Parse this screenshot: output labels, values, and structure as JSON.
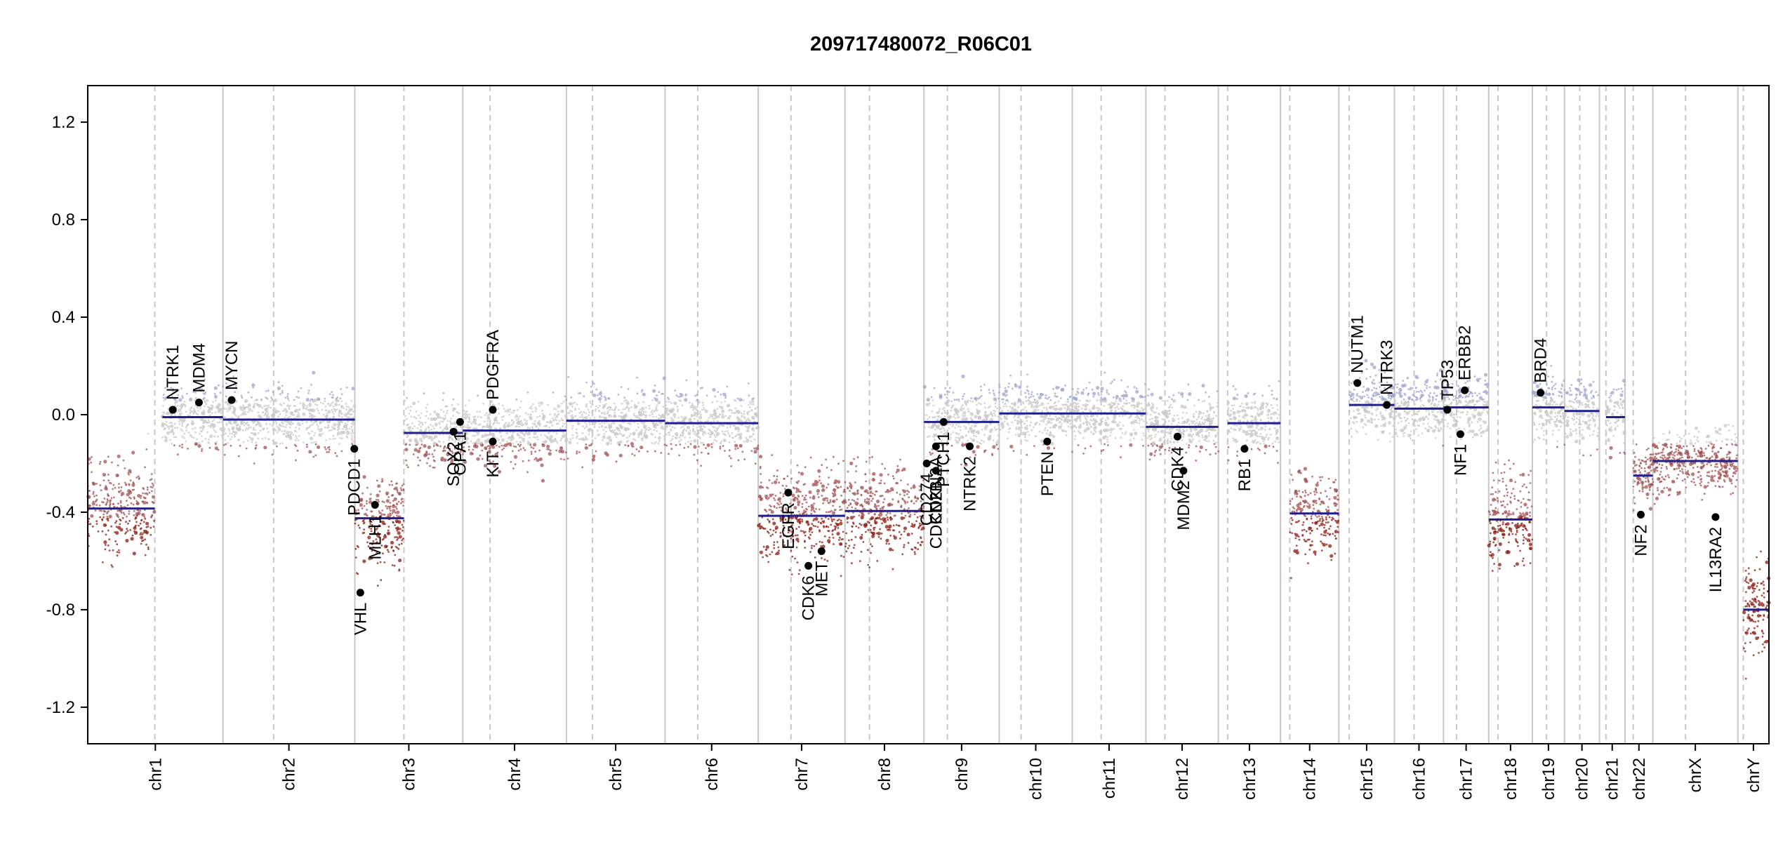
{
  "colors": {
    "segment": "#1f1f8f",
    "gene_point": "#000000",
    "gain": "#9ea3cf",
    "neutral": "#c8c8c8",
    "loss": "#a35050",
    "deep_loss": "#8b1a0f",
    "chrom_boundary": "#c8c8c8",
    "centromere": "#c8c8c8",
    "axis": "#000000"
  },
  "chart_data": {
    "type": "scatter",
    "title": "209717480072_R06C01",
    "xlabel": "",
    "ylabel": "",
    "ylim": [
      -1.35,
      1.35
    ],
    "yticks": [
      -1.2,
      -0.8,
      -0.4,
      0.0,
      0.4,
      0.8,
      1.2
    ],
    "ytick_labels": [
      "-1.2",
      "-0.8",
      "-0.4",
      "0.0",
      "0.4",
      "0.8",
      "1.2"
    ],
    "x_units": "Mb (concatenated genome)",
    "chromosomes": [
      {
        "name": "chr1",
        "length": 248,
        "centromere": 123
      },
      {
        "name": "chr2",
        "length": 242,
        "centromere": 93
      },
      {
        "name": "chr3",
        "length": 198,
        "centromere": 90
      },
      {
        "name": "chr4",
        "length": 190,
        "centromere": 50
      },
      {
        "name": "chr5",
        "length": 181,
        "centromere": 48
      },
      {
        "name": "chr6",
        "length": 171,
        "centromere": 60
      },
      {
        "name": "chr7",
        "length": 159,
        "centromere": 60
      },
      {
        "name": "chr8",
        "length": 145,
        "centromere": 45
      },
      {
        "name": "chr9",
        "length": 138,
        "centromere": 43
      },
      {
        "name": "chr10",
        "length": 134,
        "centromere": 40
      },
      {
        "name": "chr11",
        "length": 135,
        "centromere": 53
      },
      {
        "name": "chr12",
        "length": 133,
        "centromere": 35
      },
      {
        "name": "chr13",
        "length": 114,
        "centromere": 17
      },
      {
        "name": "chr14",
        "length": 107,
        "centromere": 17
      },
      {
        "name": "chr15",
        "length": 102,
        "centromere": 19
      },
      {
        "name": "chr16",
        "length": 90,
        "centromere": 36
      },
      {
        "name": "chr17",
        "length": 83,
        "centromere": 24
      },
      {
        "name": "chr18",
        "length": 80,
        "centromere": 17
      },
      {
        "name": "chr19",
        "length": 59,
        "centromere": 26
      },
      {
        "name": "chr20",
        "length": 64,
        "centromere": 28
      },
      {
        "name": "chr21",
        "length": 47,
        "centromere": 12
      },
      {
        "name": "chr22",
        "length": 51,
        "centromere": 15
      },
      {
        "name": "chrX",
        "length": 156,
        "centromere": 60
      },
      {
        "name": "chrY",
        "length": 57,
        "centromere": 10
      }
    ],
    "segments": [
      {
        "chrom": "chr1",
        "start": 0,
        "end": 123,
        "value": -0.385
      },
      {
        "chrom": "chr1",
        "start": 137,
        "end": 248,
        "value": -0.01
      },
      {
        "chrom": "chr2",
        "start": 0,
        "end": 242,
        "value": -0.02
      },
      {
        "chrom": "chr3",
        "start": 0,
        "end": 90,
        "value": -0.425
      },
      {
        "chrom": "chr3",
        "start": 90,
        "end": 198,
        "value": -0.075
      },
      {
        "chrom": "chr4",
        "start": 0,
        "end": 190,
        "value": -0.065
      },
      {
        "chrom": "chr5",
        "start": 0,
        "end": 181,
        "value": -0.025
      },
      {
        "chrom": "chr6",
        "start": 0,
        "end": 171,
        "value": -0.035
      },
      {
        "chrom": "chr7",
        "start": 0,
        "end": 159,
        "value": -0.415
      },
      {
        "chrom": "chr8",
        "start": 0,
        "end": 145,
        "value": -0.395
      },
      {
        "chrom": "chr9",
        "start": 0,
        "end": 138,
        "value": -0.03
      },
      {
        "chrom": "chr10",
        "start": 0,
        "end": 134,
        "value": 0.005
      },
      {
        "chrom": "chr11",
        "start": 0,
        "end": 135,
        "value": 0.005
      },
      {
        "chrom": "chr12",
        "start": 0,
        "end": 133,
        "value": -0.05
      },
      {
        "chrom": "chr13",
        "start": 17,
        "end": 114,
        "value": -0.035
      },
      {
        "chrom": "chr14",
        "start": 17,
        "end": 107,
        "value": -0.405
      },
      {
        "chrom": "chr15",
        "start": 19,
        "end": 102,
        "value": 0.04
      },
      {
        "chrom": "chr16",
        "start": 0,
        "end": 90,
        "value": 0.025
      },
      {
        "chrom": "chr17",
        "start": 0,
        "end": 83,
        "value": 0.03
      },
      {
        "chrom": "chr18",
        "start": 0,
        "end": 80,
        "value": -0.43
      },
      {
        "chrom": "chr19",
        "start": 0,
        "end": 59,
        "value": 0.03
      },
      {
        "chrom": "chr20",
        "start": 0,
        "end": 64,
        "value": 0.015
      },
      {
        "chrom": "chr21",
        "start": 12,
        "end": 47,
        "value": -0.01
      },
      {
        "chrom": "chr22",
        "start": 15,
        "end": 51,
        "value": -0.25
      },
      {
        "chrom": "chrX",
        "start": 0,
        "end": 156,
        "value": -0.19
      },
      {
        "chrom": "chrY",
        "start": 10,
        "end": 57,
        "value": -0.8
      }
    ],
    "genes": [
      {
        "name": "NTRK1",
        "chrom": "chr1",
        "pos": 156,
        "value": 0.02
      },
      {
        "name": "MDM4",
        "chrom": "chr1",
        "pos": 204,
        "value": 0.05
      },
      {
        "name": "MYCN",
        "chrom": "chr2",
        "pos": 16,
        "value": 0.06
      },
      {
        "name": "PDCD1",
        "chrom": "chr2",
        "pos": 241,
        "value": -0.14
      },
      {
        "name": "VHL",
        "chrom": "chr3",
        "pos": 10,
        "value": -0.73
      },
      {
        "name": "MLH1",
        "chrom": "chr3",
        "pos": 37,
        "value": -0.37
      },
      {
        "name": "SOX2",
        "chrom": "chr3",
        "pos": 181,
        "value": -0.07
      },
      {
        "name": "OPA1",
        "chrom": "chr3",
        "pos": 193,
        "value": -0.03
      },
      {
        "name": "KIT",
        "chrom": "chr4",
        "pos": 55,
        "value": -0.11
      },
      {
        "name": "PDGFRA",
        "chrom": "chr4",
        "pos": 55,
        "value": 0.02
      },
      {
        "name": "EGFR",
        "chrom": "chr7",
        "pos": 55,
        "value": -0.32
      },
      {
        "name": "CDK6",
        "chrom": "chr7",
        "pos": 92,
        "value": -0.62
      },
      {
        "name": "MET",
        "chrom": "chr7",
        "pos": 116,
        "value": -0.56
      },
      {
        "name": "CDKN2A",
        "chrom": "chr9",
        "pos": 22,
        "value": -0.13
      },
      {
        "name": "CD274",
        "chrom": "chr9",
        "pos": 5,
        "value": -0.2
      },
      {
        "name": "CDKN2B",
        "chrom": "chr9",
        "pos": 22,
        "value": -0.23
      },
      {
        "name": "PTCH1",
        "chrom": "chr9",
        "pos": 36,
        "value": -0.03
      },
      {
        "name": "NTRK2",
        "chrom": "chr9",
        "pos": 84,
        "value": -0.13
      },
      {
        "name": "PTEN",
        "chrom": "chr10",
        "pos": 88,
        "value": -0.11
      },
      {
        "name": "CDK4",
        "chrom": "chr12",
        "pos": 58,
        "value": -0.09
      },
      {
        "name": "MDM2",
        "chrom": "chr12",
        "pos": 69,
        "value": -0.23
      },
      {
        "name": "RB1",
        "chrom": "chr13",
        "pos": 48,
        "value": -0.14
      },
      {
        "name": "NUTM1",
        "chrom": "chr15",
        "pos": 34,
        "value": 0.13
      },
      {
        "name": "NTRK3",
        "chrom": "chr15",
        "pos": 88,
        "value": 0.04
      },
      {
        "name": "TP53",
        "chrom": "chr17",
        "pos": 7,
        "value": 0.02
      },
      {
        "name": "NF1",
        "chrom": "chr17",
        "pos": 31,
        "value": -0.08
      },
      {
        "name": "ERBB2",
        "chrom": "chr17",
        "pos": 39,
        "value": 0.1
      },
      {
        "name": "BRD4",
        "chrom": "chr19",
        "pos": 15,
        "value": 0.09
      },
      {
        "name": "NF2",
        "chrom": "chr22",
        "pos": 29,
        "value": -0.41
      },
      {
        "name": "IL13RA2",
        "chrom": "chrX",
        "pos": 115,
        "value": -0.42
      }
    ]
  }
}
